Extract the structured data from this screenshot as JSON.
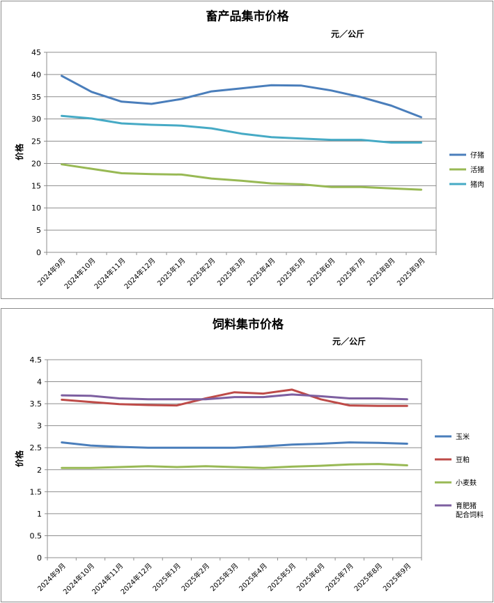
{
  "chart_data": [
    {
      "type": "line",
      "title": "畜产品集市价格",
      "unit": "元／公斤",
      "ylabel": "价格",
      "xlabel": "",
      "ylim": [
        0,
        45
      ],
      "yticks": [
        "0",
        "5",
        "10",
        "15",
        "20",
        "25",
        "30",
        "35",
        "40",
        "45"
      ],
      "grid": true,
      "legend_position": "right",
      "categories": [
        "2024年9月",
        "2024年10月",
        "2024年11月",
        "2024年12月",
        "2025年1月",
        "2025年2月",
        "2025年3月",
        "2025年4月",
        "2025年5月",
        "2025年6月",
        "2025年7月",
        "2025年8月",
        "2025年9月"
      ],
      "series": [
        {
          "name": "仔猪",
          "color": "#4a7ebb",
          "values": [
            39.7,
            36.1,
            33.9,
            33.4,
            34.5,
            36.2,
            36.9,
            37.6,
            37.5,
            36.4,
            34.9,
            33.0,
            30.4
          ]
        },
        {
          "name": "活猪",
          "color": "#98b954",
          "values": [
            19.8,
            18.8,
            17.8,
            17.6,
            17.5,
            16.6,
            16.1,
            15.5,
            15.3,
            14.7,
            14.7,
            14.4,
            14.1
          ]
        },
        {
          "name": "猪肉",
          "color": "#46aac5",
          "values": [
            30.7,
            30.1,
            29.0,
            28.7,
            28.5,
            27.9,
            26.7,
            25.9,
            25.6,
            25.3,
            25.3,
            24.7,
            24.7
          ]
        }
      ]
    },
    {
      "type": "line",
      "title": "饲料集市价格",
      "unit": "元／公斤",
      "ylabel": "价格",
      "xlabel": "",
      "ylim": [
        0,
        4.5
      ],
      "yticks": [
        "0",
        "0.5",
        "1",
        "1.5",
        "2",
        "2.5",
        "3",
        "3.5",
        "4",
        "4.5"
      ],
      "grid": true,
      "legend_position": "right",
      "categories": [
        "2024年9月",
        "2024年10月",
        "2024年11月",
        "2024年12月",
        "2025年1月",
        "2025年2月",
        "2025年3月",
        "2025年4月",
        "2025年5月",
        "2025年6月",
        "2025年7月",
        "2025年8月",
        "2025年9月"
      ],
      "series": [
        {
          "name": "玉米",
          "color": "#4a7ebb",
          "values": [
            2.62,
            2.55,
            2.52,
            2.5,
            2.5,
            2.5,
            2.5,
            2.53,
            2.57,
            2.59,
            2.62,
            2.61,
            2.59
          ]
        },
        {
          "name": "豆粕",
          "color": "#be4b48",
          "values": [
            3.59,
            3.54,
            3.49,
            3.47,
            3.46,
            3.62,
            3.76,
            3.73,
            3.82,
            3.6,
            3.46,
            3.45,
            3.45
          ]
        },
        {
          "name": "小麦麸",
          "color": "#98b954",
          "values": [
            2.04,
            2.04,
            2.06,
            2.08,
            2.06,
            2.08,
            2.06,
            2.04,
            2.07,
            2.09,
            2.12,
            2.13,
            2.1
          ]
        },
        {
          "name": "育肥猪配合饲料",
          "legend_lines": [
            "育肥猪",
            "配合饲料"
          ],
          "color": "#7d5fa0",
          "values": [
            3.69,
            3.68,
            3.62,
            3.6,
            3.6,
            3.6,
            3.65,
            3.65,
            3.71,
            3.67,
            3.62,
            3.62,
            3.6
          ]
        }
      ]
    }
  ]
}
